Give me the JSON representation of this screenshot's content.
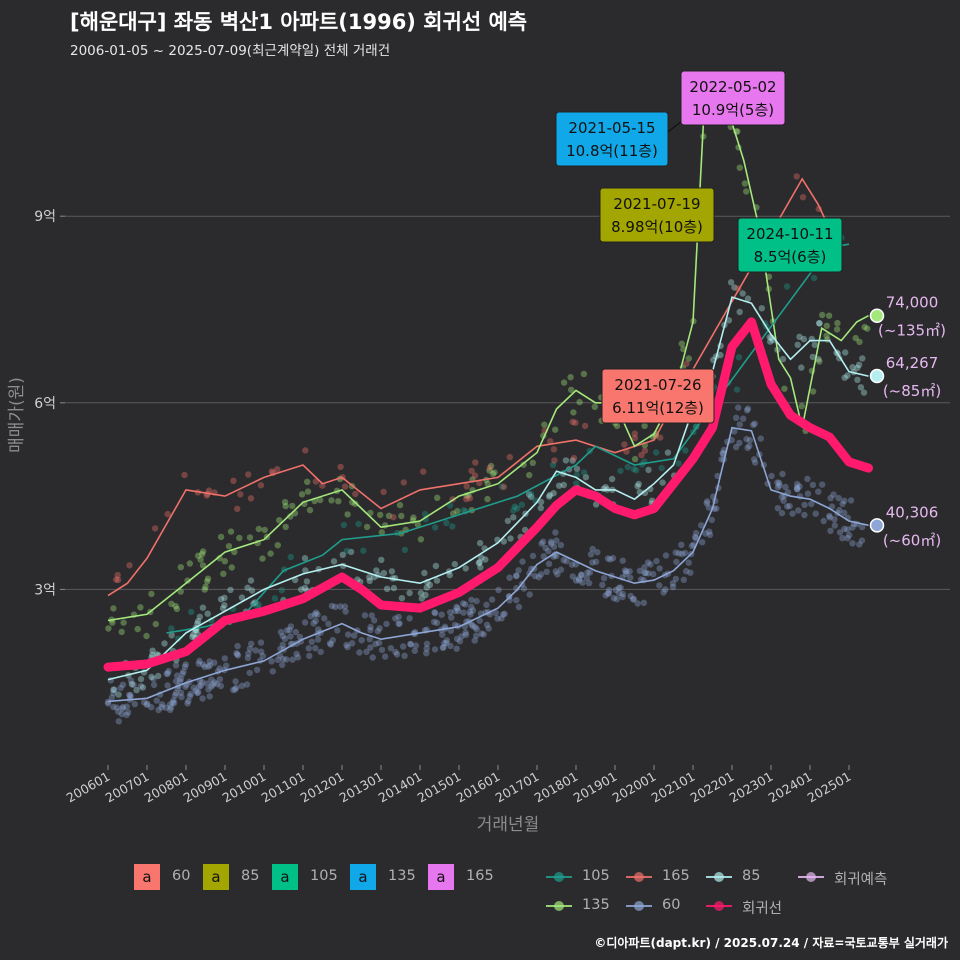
{
  "title": "[해운대구] 좌동 벽산1 아파트(1996) 회귀선 예측",
  "subtitle": "2006-01-05 ~ 2025-07-09(최근계약일) 전체 거래건",
  "caption": "©디아파트(dapt.kr) / 2025.07.24 / 자료=국토교통부 실거래가",
  "chart_data": {
    "type": "line",
    "xlabel": "거래년월",
    "ylabel": "매매가(원)",
    "y_unit": "억",
    "ylim": [
      0.0,
      11.5
    ],
    "xlim": [
      "2006-01",
      "2025-12"
    ],
    "y_ticks": [
      {
        "value": 3,
        "label": "3억"
      },
      {
        "value": 6,
        "label": "6억"
      },
      {
        "value": 9,
        "label": "9억"
      }
    ],
    "x_ticks": [
      "200601",
      "200701",
      "200801",
      "200901",
      "201001",
      "201101",
      "201201",
      "201301",
      "201401",
      "201501",
      "201601",
      "201701",
      "201801",
      "201901",
      "202001",
      "202101",
      "202201",
      "202301",
      "202401",
      "202501"
    ],
    "grid": "horizontal major",
    "colors": {
      "60": "#8ea6d6",
      "85": "#b4eef0",
      "105": "#1f9e8e",
      "135": "#a4e87c",
      "165": "#f0706a",
      "regression": "#ff1a6e",
      "forecast": "#e6b8f0"
    },
    "series": [
      {
        "name": "60",
        "points": [
          [
            2006.0,
            1.2
          ],
          [
            2007.0,
            1.25
          ],
          [
            2008.0,
            1.5
          ],
          [
            2009.0,
            1.7
          ],
          [
            2010.0,
            1.85
          ],
          [
            2011.0,
            2.2
          ],
          [
            2012.0,
            2.45
          ],
          [
            2012.5,
            2.3
          ],
          [
            2013.0,
            2.2
          ],
          [
            2014.0,
            2.3
          ],
          [
            2015.0,
            2.4
          ],
          [
            2016.0,
            2.7
          ],
          [
            2016.5,
            3.0
          ],
          [
            2017.0,
            3.4
          ],
          [
            2017.5,
            3.6
          ],
          [
            2018.0,
            3.45
          ],
          [
            2018.5,
            3.3
          ],
          [
            2019.0,
            3.2
          ],
          [
            2019.5,
            3.1
          ],
          [
            2020.0,
            3.15
          ],
          [
            2020.5,
            3.3
          ],
          [
            2021.0,
            3.6
          ],
          [
            2021.5,
            4.3
          ],
          [
            2022.0,
            5.6
          ],
          [
            2022.5,
            5.55
          ],
          [
            2023.0,
            4.6
          ],
          [
            2023.5,
            4.5
          ],
          [
            2024.0,
            4.45
          ],
          [
            2024.5,
            4.3
          ],
          [
            2025.0,
            4.1
          ],
          [
            2025.5,
            4.03
          ]
        ]
      },
      {
        "name": "85",
        "points": [
          [
            2006.0,
            1.55
          ],
          [
            2007.0,
            1.7
          ],
          [
            2008.0,
            2.3
          ],
          [
            2009.0,
            2.65
          ],
          [
            2010.0,
            3.0
          ],
          [
            2011.0,
            3.25
          ],
          [
            2012.0,
            3.4
          ],
          [
            2013.0,
            3.2
          ],
          [
            2014.0,
            3.1
          ],
          [
            2015.0,
            3.35
          ],
          [
            2016.0,
            3.75
          ],
          [
            2017.0,
            4.4
          ],
          [
            2017.5,
            4.9
          ],
          [
            2018.0,
            4.8
          ],
          [
            2018.5,
            4.6
          ],
          [
            2019.0,
            4.6
          ],
          [
            2019.5,
            4.45
          ],
          [
            2020.0,
            4.7
          ],
          [
            2020.5,
            5.0
          ],
          [
            2021.0,
            5.9
          ],
          [
            2021.5,
            6.5
          ],
          [
            2022.0,
            7.7
          ],
          [
            2022.5,
            7.6
          ],
          [
            2023.0,
            7.1
          ],
          [
            2023.5,
            6.7
          ],
          [
            2024.0,
            7.0
          ],
          [
            2024.5,
            7.0
          ],
          [
            2025.0,
            6.5
          ],
          [
            2025.5,
            6.43
          ]
        ]
      },
      {
        "name": "105",
        "points": [
          [
            2007.5,
            2.3
          ],
          [
            2008.5,
            2.4
          ],
          [
            2009.5,
            2.6
          ],
          [
            2010.5,
            3.3
          ],
          [
            2011.5,
            3.55
          ],
          [
            2012.0,
            3.8
          ],
          [
            2013.5,
            3.9
          ],
          [
            2015.0,
            4.2
          ],
          [
            2016.5,
            4.5
          ],
          [
            2018.0,
            5.0
          ],
          [
            2018.5,
            5.3
          ],
          [
            2019.5,
            5.0
          ],
          [
            2020.5,
            5.1
          ],
          [
            2024.5,
            8.5
          ],
          [
            2025.0,
            8.55
          ]
        ]
      },
      {
        "name": "135",
        "points": [
          [
            2006.0,
            2.5
          ],
          [
            2007.0,
            2.6
          ],
          [
            2008.0,
            3.1
          ],
          [
            2009.0,
            3.6
          ],
          [
            2010.0,
            3.8
          ],
          [
            2011.0,
            4.4
          ],
          [
            2012.0,
            4.6
          ],
          [
            2012.5,
            4.3
          ],
          [
            2013.0,
            4.0
          ],
          [
            2014.0,
            4.1
          ],
          [
            2015.0,
            4.5
          ],
          [
            2016.0,
            4.7
          ],
          [
            2017.0,
            5.2
          ],
          [
            2017.5,
            5.9
          ],
          [
            2018.0,
            6.2
          ],
          [
            2018.5,
            6.0
          ],
          [
            2019.0,
            6.0
          ],
          [
            2019.5,
            5.3
          ],
          [
            2020.0,
            5.5
          ],
          [
            2020.5,
            6.1
          ],
          [
            2021.0,
            7.3
          ],
          [
            2021.3,
            10.9
          ],
          [
            2021.5,
            10.6
          ],
          [
            2022.0,
            10.5
          ],
          [
            2022.3,
            9.9
          ],
          [
            2022.7,
            8.8
          ],
          [
            2023.2,
            6.7
          ],
          [
            2023.5,
            6.4
          ],
          [
            2023.8,
            5.6
          ],
          [
            2024.3,
            7.2
          ],
          [
            2024.8,
            7.0
          ],
          [
            2025.2,
            7.3
          ],
          [
            2025.5,
            7.4
          ]
        ]
      },
      {
        "name": "165",
        "points": [
          [
            2006.0,
            2.9
          ],
          [
            2006.5,
            3.1
          ],
          [
            2007.0,
            3.5
          ],
          [
            2008.0,
            4.6
          ],
          [
            2009.0,
            4.5
          ],
          [
            2010.0,
            4.8
          ],
          [
            2011.0,
            5.0
          ],
          [
            2011.5,
            4.7
          ],
          [
            2012.0,
            4.8
          ],
          [
            2013.0,
            4.3
          ],
          [
            2014.0,
            4.6
          ],
          [
            2015.0,
            4.7
          ],
          [
            2016.0,
            4.8
          ],
          [
            2017.0,
            5.3
          ],
          [
            2018.0,
            5.4
          ],
          [
            2019.0,
            5.2
          ],
          [
            2020.0,
            5.4
          ],
          [
            2020.6,
            6.1
          ],
          [
            2023.8,
            9.6
          ],
          [
            2024.2,
            9.2
          ],
          [
            2024.5,
            8.8
          ]
        ]
      },
      {
        "name": "회귀선",
        "points": [
          [
            2006.0,
            1.75
          ],
          [
            2007.0,
            1.8
          ],
          [
            2008.0,
            2.0
          ],
          [
            2009.0,
            2.5
          ],
          [
            2010.0,
            2.65
          ],
          [
            2011.0,
            2.85
          ],
          [
            2012.0,
            3.2
          ],
          [
            2012.5,
            3.0
          ],
          [
            2013.0,
            2.75
          ],
          [
            2014.0,
            2.7
          ],
          [
            2015.0,
            2.95
          ],
          [
            2016.0,
            3.35
          ],
          [
            2017.0,
            4.0
          ],
          [
            2017.5,
            4.35
          ],
          [
            2018.0,
            4.6
          ],
          [
            2018.5,
            4.5
          ],
          [
            2019.0,
            4.3
          ],
          [
            2019.5,
            4.2
          ],
          [
            2020.0,
            4.3
          ],
          [
            2020.5,
            4.7
          ],
          [
            2021.0,
            5.1
          ],
          [
            2021.5,
            5.6
          ],
          [
            2022.0,
            6.9
          ],
          [
            2022.5,
            7.3
          ],
          [
            2023.0,
            6.3
          ],
          [
            2023.5,
            5.8
          ],
          [
            2024.0,
            5.6
          ],
          [
            2024.5,
            5.45
          ],
          [
            2025.0,
            5.05
          ],
          [
            2025.5,
            4.95
          ]
        ]
      }
    ],
    "forecast": [
      {
        "size": "60",
        "value": 40306,
        "label": "40,306",
        "area_label": "(~60㎡)",
        "y": 4.03
      },
      {
        "size": "85",
        "value": 64267,
        "label": "64,267",
        "area_label": "(~85㎡)",
        "y": 6.43
      },
      {
        "size": "135",
        "value": 74000,
        "label": "74,000",
        "area_label": "(~135㎡)",
        "y": 7.4
      }
    ],
    "callouts": [
      {
        "size": "135",
        "date": "2021-05-15",
        "price": "10.8억(11층)",
        "color": "#10a8e8"
      },
      {
        "size": "165",
        "date": "2022-05-02",
        "price": "10.9억(5층)",
        "color": "#e777ee"
      },
      {
        "size": "85",
        "date": "2021-07-19",
        "price": "8.98억(10층)",
        "color": "#a3a500"
      },
      {
        "size": "105",
        "date": "2024-10-11",
        "price": "8.5억(6층)",
        "color": "#00c087"
      },
      {
        "size": "60",
        "date": "2021-07-26",
        "price": "6.11억(12층)",
        "color": "#f8766d"
      }
    ],
    "label_legend": [
      {
        "key": "a",
        "label": "60",
        "color": "#f8766d"
      },
      {
        "key": "a",
        "label": "85",
        "color": "#a3a500"
      },
      {
        "key": "a",
        "label": "105",
        "color": "#00c087"
      },
      {
        "key": "a",
        "label": "135",
        "color": "#10a8e8"
      },
      {
        "key": "a",
        "label": "165",
        "color": "#e777ee"
      }
    ],
    "line_legend": [
      {
        "label": "105",
        "color": "#1f9e8e"
      },
      {
        "label": "165",
        "color": "#f0706a"
      },
      {
        "label": "85",
        "color": "#b4eef0"
      },
      {
        "label": "회귀예측",
        "color": "#e6b8f0"
      },
      {
        "label": "135",
        "color": "#a4e87c"
      },
      {
        "label": "60",
        "color": "#8ea6d6"
      },
      {
        "label": "회귀선",
        "color": "#ff1a6e"
      }
    ]
  }
}
